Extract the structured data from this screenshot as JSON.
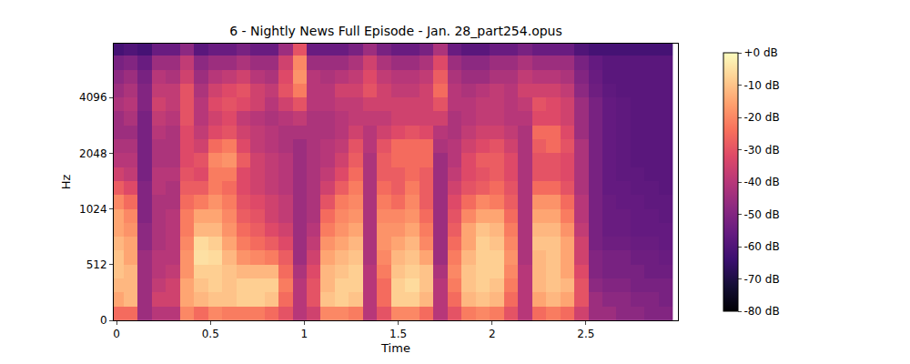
{
  "chart_data": {
    "type": "heatmap",
    "title": "6 - Nightly News Full Episode - Jan. 28_part254.opus",
    "x_label": "Time",
    "y_label": "Hz",
    "log": "y",
    "x": [
      0,
      0.075,
      0.15,
      0.225,
      0.3,
      0.375,
      0.45,
      0.525,
      0.6,
      0.675,
      0.75,
      0.825,
      0.9,
      0.975,
      1.05,
      1.125,
      1.2,
      1.275,
      1.35,
      1.425,
      1.5,
      1.575,
      1.65,
      1.725,
      1.8,
      1.875,
      1.95,
      2.025,
      2.1,
      2.175,
      2.25,
      2.325,
      2.4,
      2.475,
      2.55,
      2.625,
      2.7,
      2.775,
      2.85,
      2.925
    ],
    "y": [
      64,
      192,
      320,
      448,
      558,
      664,
      790,
      939,
      1117,
      1328,
      1579,
      1878,
      2233,
      2656,
      3158,
      3756,
      4467,
      5312,
      6317,
      7512
    ],
    "z": [
      [
        -25,
        -25,
        -45,
        -40,
        -40,
        -20,
        -25,
        -20,
        -22,
        -22,
        -22,
        -25,
        -30,
        -40,
        -35,
        -20,
        -20,
        -22,
        -40,
        -30,
        -20,
        -20,
        -25,
        -40,
        -30,
        -22,
        -20,
        -22,
        -30,
        -40,
        -25,
        -22,
        -25,
        -35,
        -45,
        -45,
        -48,
        -48,
        -50,
        -50
      ],
      [
        -15,
        -12,
        -45,
        -35,
        -35,
        -15,
        -12,
        -10,
        -10,
        -8,
        -8,
        -10,
        -25,
        -40,
        -30,
        -10,
        -8,
        -10,
        -40,
        -25,
        -8,
        -8,
        -12,
        -40,
        -25,
        -12,
        -10,
        -12,
        -25,
        -40,
        -15,
        -12,
        -15,
        -30,
        -45,
        -48,
        -48,
        -50,
        -50,
        -52
      ],
      [
        -12,
        -12,
        -45,
        -38,
        -35,
        -15,
        -10,
        -8,
        -10,
        -8,
        -8,
        -8,
        -22,
        -40,
        -30,
        -12,
        -8,
        -8,
        -40,
        -25,
        -8,
        -6,
        -10,
        -40,
        -22,
        -10,
        -8,
        -10,
        -22,
        -40,
        -12,
        -10,
        -12,
        -30,
        -48,
        -50,
        -50,
        -52,
        -52,
        -52
      ],
      [
        -10,
        -12,
        -45,
        -40,
        -38,
        -18,
        -8,
        -8,
        -10,
        -12,
        -12,
        -12,
        -25,
        -42,
        -32,
        -12,
        -10,
        -8,
        -40,
        -22,
        -10,
        -8,
        -10,
        -42,
        -20,
        -10,
        -8,
        -8,
        -20,
        -40,
        -12,
        -10,
        -15,
        -32,
        -50,
        -52,
        -52,
        -52,
        -54,
        -54
      ],
      [
        -10,
        -15,
        -45,
        -40,
        -40,
        -18,
        -5,
        -6,
        -12,
        -18,
        -20,
        -22,
        -28,
        -45,
        -35,
        -15,
        -12,
        -10,
        -42,
        -20,
        -12,
        -10,
        -15,
        -45,
        -22,
        -12,
        -8,
        -8,
        -18,
        -42,
        -12,
        -10,
        -15,
        -35,
        -50,
        -52,
        -52,
        -54,
        -54,
        -55
      ],
      [
        -12,
        -15,
        -48,
        -42,
        -40,
        -20,
        -6,
        -8,
        -15,
        -22,
        -25,
        -28,
        -32,
        -45,
        -38,
        -18,
        -15,
        -12,
        -42,
        -18,
        -15,
        -12,
        -20,
        -45,
        -25,
        -15,
        -8,
        -10,
        -20,
        -42,
        -10,
        -10,
        -15,
        -35,
        -52,
        -54,
        -54,
        -55,
        -55,
        -56
      ],
      [
        -15,
        -18,
        -48,
        -42,
        -40,
        -22,
        -12,
        -12,
        -18,
        -25,
        -28,
        -32,
        -35,
        -45,
        -40,
        -22,
        -18,
        -15,
        -42,
        -18,
        -18,
        -15,
        -22,
        -45,
        -28,
        -15,
        -10,
        -12,
        -22,
        -42,
        -12,
        -12,
        -18,
        -38,
        -52,
        -55,
        -55,
        -56,
        -56,
        -56
      ],
      [
        -15,
        -20,
        -50,
        -42,
        -40,
        -22,
        -15,
        -15,
        -20,
        -28,
        -30,
        -35,
        -38,
        -45,
        -42,
        -25,
        -20,
        -18,
        -42,
        -20,
        -20,
        -18,
        -25,
        -45,
        -30,
        -20,
        -15,
        -15,
        -25,
        -42,
        -15,
        -15,
        -22,
        -40,
        -52,
        -55,
        -55,
        -56,
        -56,
        -57
      ],
      [
        -20,
        -25,
        -50,
        -42,
        -42,
        -25,
        -22,
        -18,
        -22,
        -30,
        -32,
        -35,
        -38,
        -45,
        -42,
        -30,
        -22,
        -20,
        -42,
        -22,
        -25,
        -20,
        -28,
        -45,
        -32,
        -25,
        -20,
        -22,
        -28,
        -42,
        -18,
        -18,
        -25,
        -40,
        -52,
        -55,
        -56,
        -56,
        -57,
        -57
      ],
      [
        -28,
        -32,
        -50,
        -40,
        -42,
        -28,
        -28,
        -22,
        -25,
        -32,
        -35,
        -38,
        -40,
        -45,
        -42,
        -35,
        -28,
        -22,
        -42,
        -25,
        -28,
        -22,
        -28,
        -45,
        -35,
        -30,
        -28,
        -25,
        -30,
        -42,
        -25,
        -25,
        -30,
        -42,
        -52,
        -56,
        -56,
        -57,
        -57,
        -58
      ],
      [
        -35,
        -38,
        -52,
        -40,
        -40,
        -30,
        -32,
        -22,
        -22,
        -32,
        -35,
        -38,
        -40,
        -45,
        -42,
        -38,
        -32,
        -25,
        -42,
        -28,
        -28,
        -25,
        -28,
        -45,
        -38,
        -32,
        -30,
        -28,
        -32,
        -42,
        -30,
        -30,
        -32,
        -42,
        -52,
        -56,
        -57,
        -57,
        -58,
        -58
      ],
      [
        -40,
        -40,
        -52,
        -42,
        -42,
        -32,
        -30,
        -20,
        -18,
        -28,
        -35,
        -38,
        -40,
        -45,
        -42,
        -40,
        -35,
        -28,
        -42,
        -28,
        -25,
        -25,
        -25,
        -45,
        -40,
        -32,
        -28,
        -28,
        -32,
        -42,
        -30,
        -30,
        -32,
        -42,
        -52,
        -56,
        -57,
        -58,
        -58,
        -58
      ],
      [
        -42,
        -42,
        -52,
        -42,
        -42,
        -32,
        -35,
        -25,
        -22,
        -32,
        -38,
        -40,
        -42,
        -45,
        -42,
        -40,
        -38,
        -30,
        -40,
        -30,
        -25,
        -25,
        -25,
        -42,
        -40,
        -35,
        -32,
        -30,
        -35,
        -42,
        -28,
        -25,
        -30,
        -42,
        -52,
        -56,
        -57,
        -58,
        -58,
        -58
      ],
      [
        -45,
        -45,
        -52,
        -40,
        -42,
        -32,
        -38,
        -32,
        -30,
        -35,
        -38,
        -40,
        -42,
        -42,
        -42,
        -42,
        -40,
        -35,
        -40,
        -35,
        -32,
        -30,
        -32,
        -40,
        -42,
        -38,
        -35,
        -35,
        -38,
        -42,
        -25,
        -25,
        -32,
        -45,
        -52,
        -56,
        -57,
        -58,
        -58,
        -58
      ],
      [
        -45,
        -42,
        -52,
        -38,
        -40,
        -30,
        -40,
        -35,
        -32,
        -38,
        -40,
        -42,
        -40,
        -38,
        -42,
        -42,
        -40,
        -38,
        -38,
        -38,
        -35,
        -35,
        -35,
        -35,
        -42,
        -40,
        -38,
        -38,
        -40,
        -40,
        -32,
        -32,
        -35,
        -45,
        -52,
        -56,
        -57,
        -58,
        -58,
        -58
      ],
      [
        -42,
        -40,
        -50,
        -35,
        -38,
        -30,
        -40,
        -32,
        -30,
        -32,
        -35,
        -40,
        -35,
        -30,
        -40,
        -40,
        -38,
        -38,
        -35,
        -35,
        -35,
        -35,
        -35,
        -30,
        -40,
        -40,
        -38,
        -38,
        -40,
        -38,
        -30,
        -32,
        -35,
        -45,
        -52,
        -56,
        -57,
        -58,
        -58,
        -58
      ],
      [
        -45,
        -42,
        -50,
        -38,
        -38,
        -30,
        -42,
        -35,
        -32,
        -30,
        -35,
        -38,
        -30,
        -22,
        -40,
        -40,
        -35,
        -35,
        -30,
        -35,
        -38,
        -38,
        -35,
        -25,
        -40,
        -42,
        -40,
        -38,
        -40,
        -35,
        -35,
        -35,
        -38,
        -48,
        -54,
        -57,
        -58,
        -58,
        -58,
        -58
      ],
      [
        -48,
        -45,
        -52,
        -40,
        -42,
        -35,
        -45,
        -40,
        -38,
        -35,
        -40,
        -42,
        -32,
        -18,
        -40,
        -42,
        -40,
        -38,
        -32,
        -38,
        -40,
        -40,
        -38,
        -28,
        -42,
        -45,
        -45,
        -42,
        -42,
        -38,
        -40,
        -40,
        -42,
        -50,
        -55,
        -58,
        -58,
        -58,
        -58,
        -58
      ],
      [
        -52,
        -50,
        -55,
        -45,
        -45,
        -38,
        -48,
        -45,
        -45,
        -42,
        -45,
        -45,
        -35,
        -20,
        -45,
        -45,
        -45,
        -42,
        -35,
        -42,
        -45,
        -45,
        -42,
        -32,
        -45,
        -48,
        -48,
        -45,
        -45,
        -42,
        -45,
        -45,
        -45,
        -52,
        -56,
        -58,
        -58,
        -58,
        -58,
        -58
      ],
      [
        -62,
        -60,
        -62,
        -55,
        -55,
        -48,
        -58,
        -55,
        -55,
        -52,
        -55,
        -55,
        -45,
        -30,
        -55,
        -55,
        -55,
        -52,
        -45,
        -52,
        -55,
        -55,
        -52,
        -42,
        -55,
        -58,
        -58,
        -55,
        -55,
        -52,
        -55,
        -55,
        -55,
        -60,
        -62,
        -62,
        -62,
        -62,
        -62,
        -62
      ]
    ],
    "xlim": [
      -0.015,
      2.99
    ],
    "ylim": [
      0,
      8000
    ],
    "xticks": [
      0,
      0.5,
      1,
      1.5,
      2,
      2.5
    ],
    "yticks": [
      0,
      512,
      1024,
      2048,
      4096
    ],
    "colorbar": {
      "range": [
        -80,
        0
      ],
      "ticks": [
        {
          "value": 0,
          "label": "+0 dB"
        },
        {
          "value": -10,
          "label": "-10 dB"
        },
        {
          "value": -20,
          "label": "-20 dB"
        },
        {
          "value": -30,
          "label": "-30 dB"
        },
        {
          "value": -40,
          "label": "-40 dB"
        },
        {
          "value": -50,
          "label": "-50 dB"
        },
        {
          "value": -60,
          "label": "-60 dB"
        },
        {
          "value": -70,
          "label": "-70 dB"
        },
        {
          "value": -80,
          "label": "-80 dB"
        }
      ]
    }
  }
}
